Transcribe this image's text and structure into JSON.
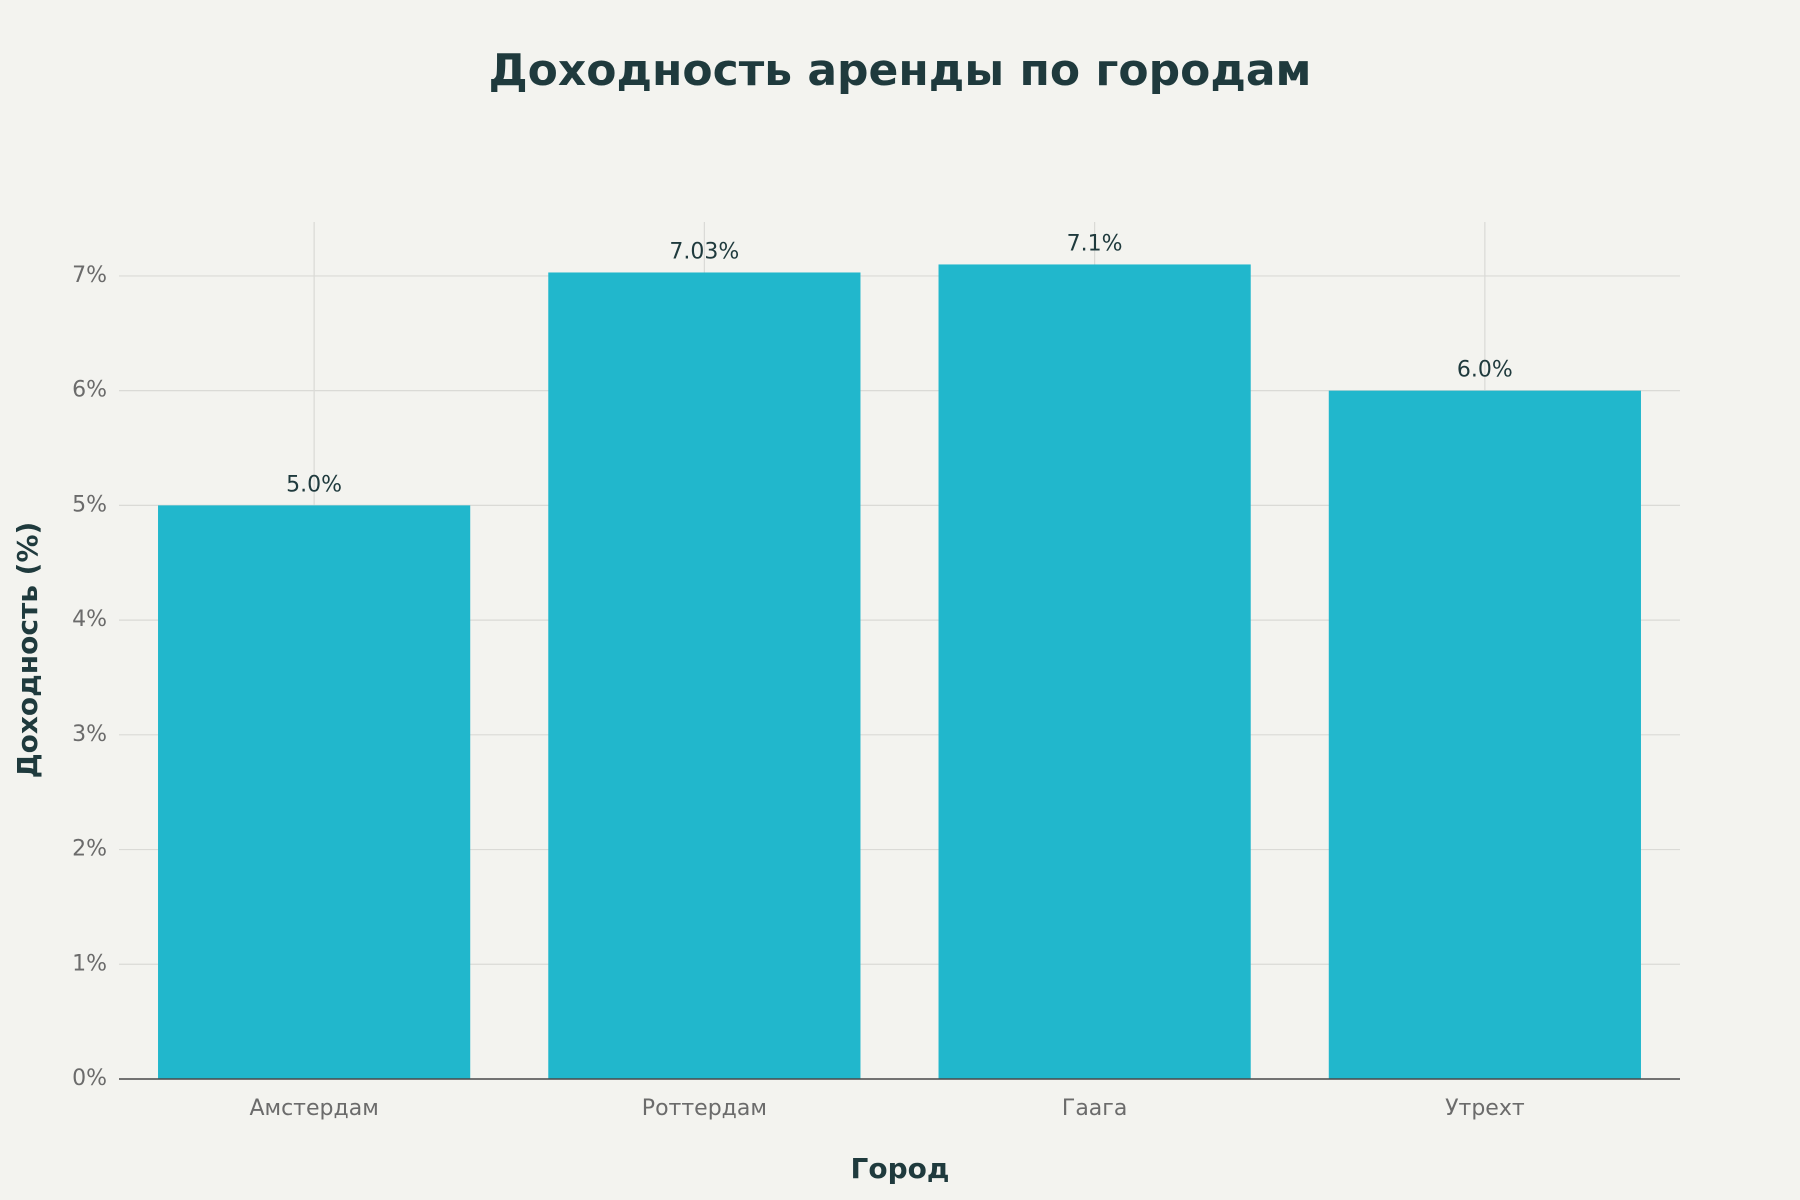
{
  "chart_data": {
    "type": "bar",
    "title": "Доходность аренды по городам",
    "x_label": "Город",
    "y_label": "Доходность (%)",
    "categories": [
      "Амстердам",
      "Роттердам",
      "Гаага",
      "Утрехт"
    ],
    "values": [
      5.0,
      7.03,
      7.1,
      6.0
    ],
    "value_labels": [
      "5.0%",
      "7.03%",
      "7.1%",
      "6.0%"
    ],
    "color": "#21b7cc",
    "ylim": [
      0,
      7.47
    ],
    "yticks": [
      {
        "value": 0,
        "label": "0%"
      },
      {
        "value": 1,
        "label": "1%"
      },
      {
        "value": 2,
        "label": "2%"
      },
      {
        "value": 3,
        "label": "3%"
      },
      {
        "value": 4,
        "label": "4%"
      },
      {
        "value": 5,
        "label": "5%"
      },
      {
        "value": 6,
        "label": "6%"
      },
      {
        "value": 7,
        "label": "7%"
      }
    ],
    "grid": true
  }
}
